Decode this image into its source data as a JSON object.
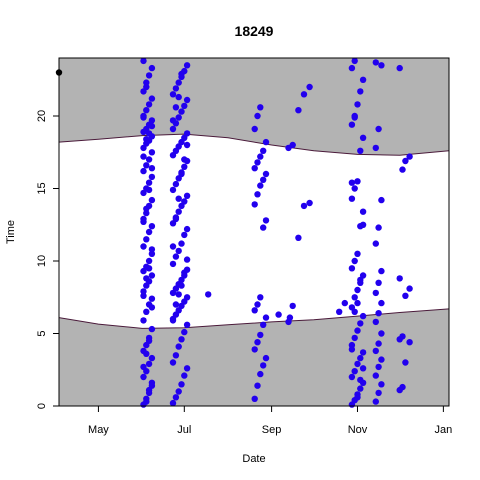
{
  "chart_data": {
    "type": "scatter",
    "title": "18249",
    "xlabel": "Date",
    "ylabel": "Time",
    "xlim": [
      "2016-04-03",
      "2017-01-05"
    ],
    "ylim": [
      0,
      24
    ],
    "x_ticks": [
      {
        "date": "2016-05-01",
        "label": "May"
      },
      {
        "date": "2016-07-01",
        "label": "Jul"
      },
      {
        "date": "2016-09-01",
        "label": "Sep"
      },
      {
        "date": "2016-11-01",
        "label": "Nov"
      },
      {
        "date": "2017-01-01",
        "label": "Jan"
      }
    ],
    "y_ticks": [
      0,
      5,
      10,
      15,
      20
    ],
    "point_color": "#2200ee",
    "shade_color": "#b3b3b3",
    "curve_color": "#4a1a3a",
    "sunset_curve": [
      [
        "2016-04-03",
        18.2
      ],
      [
        "2016-05-01",
        18.4
      ],
      [
        "2016-06-01",
        18.65
      ],
      [
        "2016-07-01",
        18.75
      ],
      [
        "2016-08-01",
        18.5
      ],
      [
        "2016-09-01",
        18.0
      ],
      [
        "2016-10-01",
        17.6
      ],
      [
        "2016-11-01",
        17.35
      ],
      [
        "2016-12-01",
        17.3
      ],
      [
        "2017-01-05",
        17.6
      ]
    ],
    "sunrise_curve": [
      [
        "2016-04-03",
        6.1
      ],
      [
        "2016-05-01",
        5.65
      ],
      [
        "2016-06-01",
        5.35
      ],
      [
        "2016-07-01",
        5.4
      ],
      [
        "2016-08-01",
        5.6
      ],
      [
        "2016-09-01",
        5.8
      ],
      [
        "2016-10-01",
        5.95
      ],
      [
        "2016-11-01",
        6.2
      ],
      [
        "2016-12-01",
        6.45
      ],
      [
        "2017-01-05",
        6.7
      ]
    ],
    "black_point": [
      "2016-04-03",
      23.0
    ],
    "clusters": [
      {
        "dates": [
          "2016-06-02",
          "2016-06-04",
          "2016-06-06",
          "2016-06-08"
        ],
        "times": [
          0.1,
          0.5,
          1.1,
          1.6,
          2.0,
          2.4,
          2.9,
          3.3,
          3.8,
          4.2,
          4.7,
          5.3,
          5.9,
          6.5,
          7.0,
          7.4,
          7.9,
          8.3,
          8.6,
          9.0,
          9.3,
          9.6,
          10.0,
          10.5,
          11.0,
          11.5,
          12.0,
          12.4,
          12.9,
          13.3,
          13.8,
          14.2,
          14.7,
          15.0,
          15.4,
          15.8,
          16.2,
          16.6,
          17.0,
          17.5,
          17.8,
          18.1,
          18.3,
          18.6,
          18.9,
          19.1,
          19.4,
          19.7,
          20.0,
          20.4,
          20.8,
          21.2,
          21.7,
          22.3,
          22.8,
          23.3,
          23.8,
          0.3,
          0.9,
          1.4,
          2.7,
          3.6,
          4.5,
          6.8,
          7.6,
          8.8,
          9.5,
          10.8,
          12.7,
          13.6,
          14.9,
          16.4,
          17.2,
          18.4,
          18.8,
          19.3,
          19.9,
          22.0
        ]
      },
      {
        "dates": [
          "2016-06-23",
          "2016-06-25",
          "2016-06-27",
          "2016-06-29",
          "2016-07-01",
          "2016-07-03"
        ],
        "times": [
          0.2,
          0.6,
          1.0,
          1.5,
          2.1,
          2.6,
          3.0,
          3.5,
          4.1,
          4.6,
          5.1,
          5.6,
          5.9,
          6.3,
          6.6,
          6.9,
          7.2,
          7.5,
          7.8,
          8.1,
          8.4,
          8.7,
          9.0,
          9.4,
          9.8,
          10.3,
          10.7,
          11.2,
          11.8,
          12.2,
          12.6,
          13.0,
          13.4,
          13.8,
          14.1,
          14.5,
          14.9,
          15.3,
          15.7,
          16.1,
          16.5,
          16.9,
          17.3,
          17.6,
          17.9,
          18.2,
          18.5,
          18.8,
          19.1,
          19.5,
          19.9,
          20.3,
          20.7,
          21.1,
          21.5,
          21.9,
          22.3,
          22.7,
          23.1,
          23.5,
          6.0,
          7.0,
          7.7,
          8.3,
          9.2,
          10.1,
          11.0,
          12.9,
          14.3,
          16.0,
          17.0,
          18.0,
          19.7,
          20.6,
          21.3,
          22.9
        ]
      },
      {
        "dates": [
          "2016-08-20",
          "2016-08-22",
          "2016-08-24",
          "2016-08-26",
          "2016-08-28"
        ],
        "times": [
          0.5,
          1.4,
          2.2,
          2.8,
          3.3,
          3.9,
          4.4,
          4.9,
          5.6,
          6.1,
          6.6,
          7.0,
          7.5,
          12.3,
          12.8,
          13.9,
          14.6,
          15.2,
          15.6,
          16.0,
          16.4,
          16.8,
          17.2,
          17.6,
          18.2,
          19.1,
          20.0,
          20.6
        ]
      },
      {
        "dates": [
          "2016-09-13",
          "2016-09-16",
          "2016-09-20",
          "2016-09-24",
          "2016-09-28"
        ],
        "times": [
          5.8,
          6.9,
          11.6,
          13.8,
          14.0,
          17.8,
          18.0,
          20.4,
          21.5,
          22.0
        ]
      },
      {
        "dates": [
          "2016-10-28",
          "2016-10-30",
          "2016-11-01",
          "2016-11-03",
          "2016-11-05"
        ],
        "times": [
          0.1,
          0.4,
          0.8,
          1.2,
          1.6,
          2.0,
          2.4,
          2.9,
          3.3,
          3.7,
          4.2,
          4.7,
          5.2,
          5.7,
          6.2,
          6.8,
          7.5,
          8.0,
          8.5,
          9.0,
          9.5,
          10.0,
          10.5,
          12.4,
          13.4,
          14.3,
          15.0,
          15.5,
          17.6,
          18.5,
          19.4,
          20.0,
          20.8,
          21.7,
          22.5,
          23.3,
          23.8,
          0.6,
          1.8,
          2.6,
          3.9,
          6.5,
          7.1,
          8.7,
          12.5,
          15.4,
          19.9
        ]
      },
      {
        "dates": [
          "2016-11-14",
          "2016-11-16",
          "2016-11-18"
        ],
        "times": [
          0.3,
          0.9,
          1.5,
          2.1,
          2.7,
          3.2,
          3.8,
          4.3,
          5.0,
          5.8,
          6.4,
          7.1,
          7.8,
          8.5,
          9.3,
          11.2,
          12.3,
          14.2,
          17.8,
          19.1,
          23.5,
          23.7
        ]
      },
      {
        "dates": [
          "2016-12-01",
          "2016-12-03",
          "2016-12-05",
          "2016-12-08"
        ],
        "times": [
          1.1,
          1.3,
          3.0,
          4.4,
          4.6,
          4.8,
          7.6,
          8.1,
          8.8,
          16.3,
          16.9,
          17.2,
          23.3
        ]
      },
      {
        "dates": [
          "2016-07-18",
          "2016-09-06",
          "2016-09-14",
          "2016-10-19",
          "2016-10-23"
        ],
        "times": [
          7.7,
          6.3,
          6.1,
          6.5,
          7.1
        ]
      }
    ]
  }
}
